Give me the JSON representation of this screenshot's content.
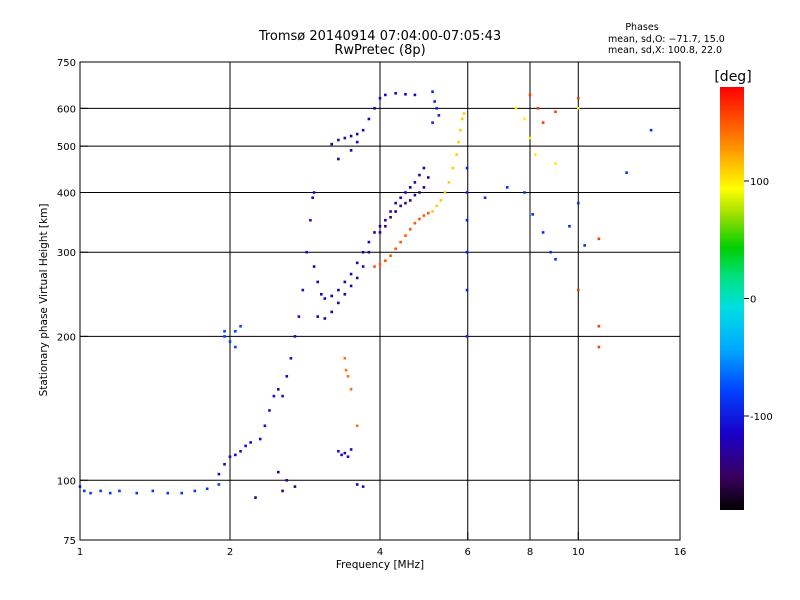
{
  "chart_data": {
    "type": "scatter",
    "title": "Tromsø 20140914 07:04:00-07:05:43",
    "subtitle": "RwPretec (8p)",
    "stats": {
      "heading": "Phases",
      "line_o": "mean, sd,O: −71.7, 15.0",
      "line_x": "mean, sd,X: 100.8, 22.0"
    },
    "xlabel": "Frequency [MHz]",
    "ylabel": "Stationary phase Virtual Height [km]",
    "x_scale": "log",
    "y_scale": "log",
    "xlim": [
      1,
      16
    ],
    "ylim": [
      75,
      750
    ],
    "x_ticks": [
      {
        "value": 1,
        "label": "1"
      },
      {
        "value": 2,
        "label": "2"
      },
      {
        "value": 4,
        "label": "4"
      },
      {
        "value": 6,
        "label": "6"
      },
      {
        "value": 8,
        "label": "8"
      },
      {
        "value": 10,
        "label": "10"
      },
      {
        "value": 16,
        "label": "16"
      }
    ],
    "y_ticks": [
      {
        "value": 75,
        "label": "75"
      },
      {
        "value": 100,
        "label": "100"
      },
      {
        "value": 200,
        "label": "200"
      },
      {
        "value": 300,
        "label": "300"
      },
      {
        "value": 400,
        "label": "400"
      },
      {
        "value": 500,
        "label": "500"
      },
      {
        "value": 600,
        "label": "600"
      },
      {
        "value": 750,
        "label": "750"
      }
    ],
    "grid_x": [
      2,
      4,
      6,
      8,
      10
    ],
    "grid_y": [
      100,
      200,
      300,
      400,
      500,
      600
    ],
    "colorbar": {
      "label": "[deg]",
      "range": [
        -180,
        180
      ],
      "ticks": [
        {
          "value": 100,
          "label": "100"
        },
        {
          "value": 0,
          "label": "0"
        },
        {
          "value": -100,
          "label": "-100"
        }
      ]
    },
    "traces": [
      {
        "phase": -85,
        "points": [
          [
            1.0,
            97
          ],
          [
            1.02,
            95
          ],
          [
            1.05,
            94
          ],
          [
            1.1,
            95
          ],
          [
            1.15,
            94
          ],
          [
            1.2,
            95
          ],
          [
            1.3,
            94
          ],
          [
            1.4,
            95
          ],
          [
            1.5,
            94
          ],
          [
            1.6,
            94
          ],
          [
            1.7,
            95
          ],
          [
            1.8,
            96
          ],
          [
            1.9,
            98
          ]
        ]
      },
      {
        "phase": -110,
        "points": [
          [
            1.9,
            103
          ],
          [
            1.95,
            108
          ],
          [
            2.0,
            112
          ],
          [
            2.05,
            113
          ],
          [
            2.1,
            115
          ],
          [
            2.15,
            118
          ],
          [
            2.2,
            120
          ],
          [
            2.3,
            122
          ],
          [
            2.35,
            130
          ],
          [
            2.4,
            140
          ],
          [
            2.45,
            150
          ],
          [
            2.5,
            155
          ],
          [
            2.55,
            150
          ],
          [
            2.6,
            165
          ],
          [
            2.65,
            180
          ],
          [
            2.7,
            200
          ],
          [
            2.75,
            220
          ],
          [
            2.8,
            250
          ],
          [
            2.85,
            300
          ],
          [
            2.9,
            350
          ],
          [
            2.93,
            390
          ],
          [
            2.95,
            400
          ]
        ]
      },
      {
        "phase": -80,
        "points": [
          [
            1.95,
            200
          ],
          [
            2.0,
            195
          ],
          [
            2.05,
            205
          ],
          [
            2.1,
            210
          ],
          [
            2.05,
            190
          ],
          [
            1.95,
            205
          ]
        ]
      },
      {
        "phase": -120,
        "points": [
          [
            2.95,
            280
          ],
          [
            3.0,
            260
          ],
          [
            3.05,
            245
          ],
          [
            3.1,
            240
          ],
          [
            3.2,
            243
          ],
          [
            3.3,
            250
          ],
          [
            3.4,
            260
          ],
          [
            3.5,
            270
          ],
          [
            3.6,
            285
          ],
          [
            3.7,
            300
          ],
          [
            3.8,
            315
          ],
          [
            3.9,
            330
          ]
        ]
      },
      {
        "phase": -130,
        "points": [
          [
            3.0,
            220
          ],
          [
            3.1,
            218
          ],
          [
            3.2,
            225
          ],
          [
            3.3,
            235
          ],
          [
            3.4,
            245
          ],
          [
            3.5,
            255
          ],
          [
            3.6,
            265
          ],
          [
            3.7,
            280
          ],
          [
            3.8,
            300
          ]
        ]
      },
      {
        "phase": -140,
        "points": [
          [
            4.0,
            330
          ],
          [
            4.1,
            340
          ],
          [
            4.2,
            355
          ],
          [
            4.3,
            365
          ],
          [
            4.4,
            375
          ],
          [
            4.5,
            380
          ],
          [
            4.6,
            385
          ],
          [
            4.7,
            395
          ],
          [
            4.8,
            400
          ],
          [
            4.9,
            410
          ],
          [
            5.0,
            430
          ]
        ]
      },
      {
        "phase": -130,
        "points": [
          [
            4.0,
            340
          ],
          [
            4.1,
            350
          ],
          [
            4.2,
            365
          ],
          [
            4.3,
            380
          ],
          [
            4.4,
            390
          ],
          [
            4.5,
            400
          ],
          [
            4.6,
            410
          ],
          [
            4.7,
            420
          ],
          [
            4.8,
            435
          ],
          [
            4.9,
            450
          ]
        ]
      },
      {
        "phase": -115,
        "points": [
          [
            3.3,
            470
          ],
          [
            3.5,
            490
          ],
          [
            3.6,
            510
          ],
          [
            3.7,
            540
          ],
          [
            3.8,
            570
          ],
          [
            3.9,
            600
          ],
          [
            4.0,
            630
          ],
          [
            4.1,
            640
          ],
          [
            4.3,
            645
          ],
          [
            4.5,
            642
          ],
          [
            4.7,
            640
          ]
        ]
      },
      {
        "phase": -125,
        "points": [
          [
            3.2,
            505
          ],
          [
            3.3,
            515
          ],
          [
            3.4,
            520
          ],
          [
            3.5,
            525
          ],
          [
            3.6,
            530
          ]
        ]
      },
      {
        "phase": -95,
        "points": [
          [
            5.1,
            650
          ],
          [
            5.15,
            620
          ],
          [
            5.2,
            600
          ],
          [
            5.25,
            580
          ],
          [
            5.1,
            560
          ]
        ]
      },
      {
        "phase": 150,
        "points": [
          [
            3.9,
            280
          ],
          [
            4.0,
            283
          ],
          [
            4.1,
            288
          ],
          [
            4.2,
            295
          ],
          [
            4.3,
            305
          ],
          [
            4.4,
            315
          ],
          [
            4.5,
            325
          ],
          [
            4.6,
            335
          ],
          [
            4.7,
            345
          ],
          [
            4.8,
            352
          ],
          [
            4.9,
            358
          ],
          [
            5.0,
            362
          ]
        ]
      },
      {
        "phase": 110,
        "points": [
          [
            5.1,
            365
          ],
          [
            5.2,
            375
          ],
          [
            5.3,
            385
          ],
          [
            5.4,
            400
          ],
          [
            5.5,
            420
          ],
          [
            5.6,
            450
          ],
          [
            5.7,
            480
          ],
          [
            5.75,
            510
          ],
          [
            5.8,
            540
          ],
          [
            5.85,
            570
          ],
          [
            5.9,
            585
          ]
        ]
      },
      {
        "phase": -100,
        "points": [
          [
            5.98,
            450
          ],
          [
            5.98,
            400
          ],
          [
            5.98,
            350
          ],
          [
            5.98,
            300
          ],
          [
            5.98,
            250
          ],
          [
            5.98,
            200
          ]
        ]
      },
      {
        "phase": -90,
        "points": [
          [
            6.5,
            390
          ],
          [
            7.2,
            410
          ],
          [
            7.8,
            400
          ],
          [
            8.1,
            360
          ],
          [
            8.5,
            330
          ],
          [
            8.8,
            300
          ],
          [
            9.0,
            290
          ],
          [
            9.6,
            340
          ],
          [
            10.0,
            380
          ],
          [
            10.3,
            310
          ],
          [
            12.5,
            440
          ],
          [
            14.0,
            540
          ]
        ]
      },
      {
        "phase": 140,
        "points": [
          [
            3.4,
            180
          ],
          [
            3.42,
            170
          ],
          [
            3.45,
            165
          ],
          [
            3.5,
            155
          ],
          [
            3.6,
            130
          ]
        ]
      },
      {
        "phase": 160,
        "points": [
          [
            8.0,
            640
          ],
          [
            8.3,
            600
          ],
          [
            8.5,
            560
          ],
          [
            9.0,
            590
          ],
          [
            10.0,
            630
          ],
          [
            11.0,
            320
          ],
          [
            11.0,
            190
          ],
          [
            11.0,
            210
          ],
          [
            10.0,
            250
          ]
        ]
      },
      {
        "phase": -110,
        "points": [
          [
            3.3,
            115
          ],
          [
            3.35,
            113
          ],
          [
            3.4,
            114
          ],
          [
            3.45,
            112
          ],
          [
            3.5,
            116
          ],
          [
            3.6,
            98
          ],
          [
            3.7,
            97
          ]
        ]
      },
      {
        "phase": 100,
        "points": [
          [
            7.5,
            600
          ],
          [
            7.8,
            570
          ],
          [
            8.0,
            520
          ],
          [
            8.2,
            480
          ],
          [
            9.0,
            460
          ],
          [
            10.0,
            600
          ]
        ]
      },
      {
        "phase": -140,
        "points": [
          [
            2.5,
            104
          ],
          [
            2.6,
            100
          ],
          [
            2.7,
            97
          ],
          [
            2.25,
            92
          ],
          [
            2.55,
            95
          ]
        ]
      }
    ]
  }
}
